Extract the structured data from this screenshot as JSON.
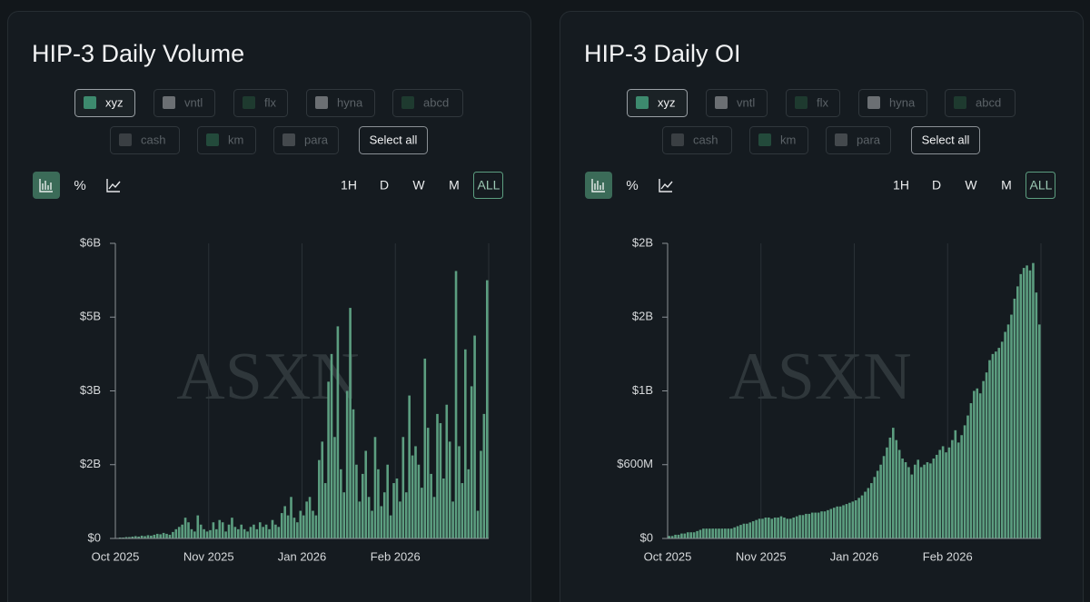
{
  "chart_data": [
    {
      "type": "bar",
      "title": "HIP-3 Daily Volume",
      "series": [
        {
          "name": "xyz",
          "color": "#5c9e80",
          "values": [
            0.01,
            0.02,
            0.02,
            0.03,
            0.03,
            0.04,
            0.05,
            0.04,
            0.06,
            0.05,
            0.07,
            0.06,
            0.08,
            0.1,
            0.09,
            0.12,
            0.1,
            0.08,
            0.14,
            0.2,
            0.25,
            0.3,
            0.45,
            0.35,
            0.2,
            0.15,
            0.5,
            0.3,
            0.2,
            0.15,
            0.18,
            0.35,
            0.2,
            0.4,
            0.35,
            0.15,
            0.3,
            0.45,
            0.25,
            0.2,
            0.3,
            0.2,
            0.15,
            0.25,
            0.3,
            0.2,
            0.35,
            0.25,
            0.3,
            0.2,
            0.4,
            0.3,
            0.25,
            0.55,
            0.7,
            0.5,
            0.9,
            0.45,
            0.35,
            0.6,
            0.5,
            0.8,
            0.9,
            0.6,
            0.5,
            1.7,
            2.1,
            1.2,
            3.4,
            4.0,
            2.2,
            4.6,
            1.5,
            1.0,
            3.2,
            5.0,
            2.8,
            1.6,
            0.8,
            1.4,
            1.9,
            0.9,
            0.6,
            2.2,
            1.5,
            0.7,
            1.0,
            1.6,
            0.5,
            1.2,
            1.3,
            0.8,
            2.2,
            1.0,
            3.1,
            1.8,
            2.0,
            1.6,
            1.1,
            3.9,
            2.4,
            1.4,
            0.9,
            2.7,
            2.5,
            1.3,
            2.9,
            2.1,
            0.8,
            5.8,
            2.0,
            1.2,
            4.1,
            1.5,
            3.3,
            4.4,
            0.6,
            1.9,
            2.7,
            5.6
          ]
        }
      ],
      "other_filters": [
        "vntl",
        "flx",
        "hyna",
        "abcd",
        "cash",
        "km",
        "para"
      ],
      "select_all": "Select all",
      "percent_toggle": "%",
      "timeframes": [
        "1H",
        "D",
        "W",
        "M",
        "ALL"
      ],
      "watermark": "ASXN",
      "categories": [
        "Oct 2025",
        null,
        null,
        null,
        null,
        null,
        null,
        null,
        null,
        null,
        null,
        null,
        null,
        null,
        null,
        null,
        null,
        null,
        null,
        null,
        null,
        null,
        null,
        null,
        null,
        null,
        null,
        null,
        null,
        null,
        "Nov 2025",
        null,
        null,
        null,
        null,
        null,
        null,
        null,
        null,
        null,
        null,
        null,
        null,
        null,
        null,
        null,
        null,
        null,
        null,
        null,
        null,
        null,
        null,
        null,
        null,
        null,
        null,
        null,
        null,
        null,
        "Jan 2026",
        null,
        null,
        null,
        null,
        null,
        null,
        null,
        null,
        null,
        null,
        null,
        null,
        null,
        null,
        null,
        null,
        null,
        null,
        null,
        null,
        null,
        null,
        null,
        null,
        null,
        null,
        null,
        null,
        null,
        "Feb 2026",
        null,
        null,
        null,
        null,
        null,
        null,
        null,
        null,
        null,
        null,
        null,
        null,
        null,
        null,
        null,
        null,
        null,
        null,
        null,
        null,
        null,
        null,
        null,
        null,
        null,
        null,
        null,
        null,
        null
      ],
      "ylim": [
        0,
        6.4
      ],
      "yticks": [
        {
          "value": 0,
          "label": "$0"
        },
        {
          "value": 1.6,
          "label": "$2B"
        },
        {
          "value": 3.2,
          "label": "$3B"
        },
        {
          "value": 4.8,
          "label": "$5B"
        },
        {
          "value": 6.4,
          "label": "$6B"
        }
      ]
    },
    {
      "type": "bar",
      "title": "HIP-3 Daily OI",
      "series": [
        {
          "name": "xyz",
          "color": "#5c9e80",
          "values": [
            0.02,
            0.02,
            0.03,
            0.03,
            0.04,
            0.04,
            0.05,
            0.05,
            0.05,
            0.06,
            0.07,
            0.08,
            0.08,
            0.08,
            0.08,
            0.08,
            0.08,
            0.08,
            0.08,
            0.08,
            0.08,
            0.09,
            0.1,
            0.11,
            0.12,
            0.12,
            0.13,
            0.14,
            0.15,
            0.16,
            0.16,
            0.17,
            0.17,
            0.16,
            0.17,
            0.17,
            0.18,
            0.17,
            0.16,
            0.16,
            0.17,
            0.18,
            0.19,
            0.19,
            0.2,
            0.2,
            0.21,
            0.21,
            0.21,
            0.22,
            0.22,
            0.23,
            0.24,
            0.25,
            0.26,
            0.26,
            0.27,
            0.28,
            0.29,
            0.3,
            0.31,
            0.33,
            0.35,
            0.38,
            0.41,
            0.45,
            0.5,
            0.55,
            0.6,
            0.67,
            0.74,
            0.82,
            0.9,
            0.8,
            0.72,
            0.65,
            0.62,
            0.58,
            0.52,
            0.6,
            0.64,
            0.58,
            0.6,
            0.62,
            0.61,
            0.65,
            0.68,
            0.72,
            0.75,
            0.7,
            0.74,
            0.8,
            0.88,
            0.78,
            0.84,
            0.92,
            1.0,
            1.1,
            1.2,
            1.22,
            1.18,
            1.28,
            1.35,
            1.45,
            1.5,
            1.52,
            1.55,
            1.6,
            1.68,
            1.74,
            1.82,
            1.95,
            2.05,
            2.15,
            2.2,
            2.22,
            2.18,
            2.24,
            2.0,
            1.74
          ]
        }
      ],
      "other_filters": [
        "vntl",
        "flx",
        "hyna",
        "abcd",
        "cash",
        "km",
        "para"
      ],
      "select_all": "Select all",
      "percent_toggle": "%",
      "timeframes": [
        "1H",
        "D",
        "W",
        "M",
        "ALL"
      ],
      "watermark": "ASXN",
      "categories": [
        "Oct 2025",
        null,
        null,
        null,
        null,
        null,
        null,
        null,
        null,
        null,
        null,
        null,
        null,
        null,
        null,
        null,
        null,
        null,
        null,
        null,
        null,
        null,
        null,
        null,
        null,
        null,
        null,
        null,
        null,
        null,
        "Nov 2025",
        null,
        null,
        null,
        null,
        null,
        null,
        null,
        null,
        null,
        null,
        null,
        null,
        null,
        null,
        null,
        null,
        null,
        null,
        null,
        null,
        null,
        null,
        null,
        null,
        null,
        null,
        null,
        null,
        null,
        "Jan 2026",
        null,
        null,
        null,
        null,
        null,
        null,
        null,
        null,
        null,
        null,
        null,
        null,
        null,
        null,
        null,
        null,
        null,
        null,
        null,
        null,
        null,
        null,
        null,
        null,
        null,
        null,
        null,
        null,
        null,
        "Feb 2026",
        null,
        null,
        null,
        null,
        null,
        null,
        null,
        null,
        null,
        null,
        null,
        null,
        null,
        null,
        null,
        null,
        null,
        null,
        null,
        null,
        null,
        null,
        null,
        null,
        null,
        null,
        null,
        null,
        null
      ],
      "ylim": [
        0,
        2.4
      ],
      "yticks": [
        {
          "value": 0,
          "label": "$0"
        },
        {
          "value": 0.6,
          "label": "$600M"
        },
        {
          "value": 1.2,
          "label": "$1B"
        },
        {
          "value": 1.8,
          "label": "$2B"
        },
        {
          "value": 2.4,
          "label": "$2B"
        }
      ]
    }
  ]
}
